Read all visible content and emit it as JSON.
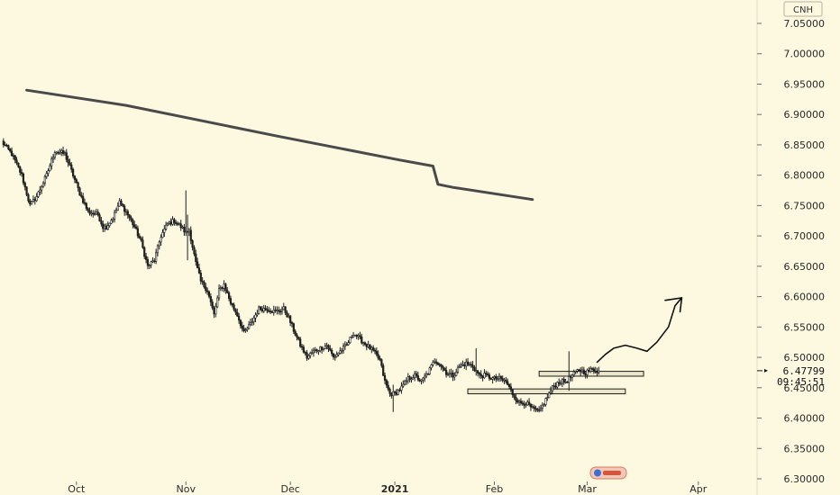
{
  "chart_data": {
    "type": "candlestick",
    "currency": "CNH",
    "ylim": [
      6.28,
      7.1
    ],
    "y_ticks": [
      "7.05000",
      "7.00000",
      "6.95000",
      "6.90000",
      "6.85000",
      "6.80000",
      "6.75000",
      "6.70000",
      "6.65000",
      "6.60000",
      "6.55000",
      "6.50000",
      "6.45000",
      "6.40000",
      "6.35000",
      "6.30000"
    ],
    "x_ticks": [
      {
        "label": "Oct",
        "index": 45
      },
      {
        "label": "Nov",
        "index": 111
      },
      {
        "label": "Dec",
        "index": 174
      },
      {
        "label": "2021",
        "index": 237,
        "bold": true
      },
      {
        "label": "Feb",
        "index": 297
      },
      {
        "label": "Mar",
        "index": 353
      },
      {
        "label": "Apr",
        "index": 420
      }
    ],
    "current_price": "6.47799",
    "current_time": "09:45:51",
    "close_anchors": [
      [
        0,
        6.855
      ],
      [
        6,
        6.835
      ],
      [
        12,
        6.8
      ],
      [
        17,
        6.75
      ],
      [
        21,
        6.765
      ],
      [
        27,
        6.8
      ],
      [
        32,
        6.84
      ],
      [
        38,
        6.835
      ],
      [
        43,
        6.8
      ],
      [
        47,
        6.77
      ],
      [
        52,
        6.74
      ],
      [
        58,
        6.735
      ],
      [
        61,
        6.715
      ],
      [
        63,
        6.715
      ],
      [
        67,
        6.73
      ],
      [
        71,
        6.755
      ],
      [
        75,
        6.74
      ],
      [
        80,
        6.715
      ],
      [
        84,
        6.69
      ],
      [
        88,
        6.65
      ],
      [
        92,
        6.66
      ],
      [
        96,
        6.7
      ],
      [
        100,
        6.72
      ],
      [
        104,
        6.725
      ],
      [
        108,
        6.715
      ],
      [
        111,
        6.705
      ],
      [
        113,
        6.71
      ],
      [
        117,
        6.655
      ],
      [
        120,
        6.625
      ],
      [
        124,
        6.61
      ],
      [
        128,
        6.57
      ],
      [
        131,
        6.61
      ],
      [
        134,
        6.62
      ],
      [
        138,
        6.59
      ],
      [
        142,
        6.57
      ],
      [
        146,
        6.54
      ],
      [
        150,
        6.555
      ],
      [
        155,
        6.58
      ],
      [
        160,
        6.58
      ],
      [
        165,
        6.575
      ],
      [
        170,
        6.58
      ],
      [
        173,
        6.565
      ],
      [
        176,
        6.545
      ],
      [
        180,
        6.52
      ],
      [
        184,
        6.5
      ],
      [
        188,
        6.51
      ],
      [
        192,
        6.515
      ],
      [
        196,
        6.52
      ],
      [
        200,
        6.5
      ],
      [
        204,
        6.51
      ],
      [
        208,
        6.52
      ],
      [
        212,
        6.54
      ],
      [
        216,
        6.53
      ],
      [
        220,
        6.52
      ],
      [
        224,
        6.51
      ],
      [
        228,
        6.495
      ],
      [
        231,
        6.46
      ],
      [
        234,
        6.44
      ],
      [
        237,
        6.44
      ],
      [
        241,
        6.45
      ],
      [
        245,
        6.465
      ],
      [
        249,
        6.47
      ],
      [
        253,
        6.46
      ],
      [
        257,
        6.475
      ],
      [
        261,
        6.495
      ],
      [
        264,
        6.49
      ],
      [
        268,
        6.475
      ],
      [
        272,
        6.47
      ],
      [
        276,
        6.485
      ],
      [
        280,
        6.49
      ],
      [
        284,
        6.485
      ],
      [
        288,
        6.47
      ],
      [
        292,
        6.47
      ],
      [
        296,
        6.465
      ],
      [
        300,
        6.465
      ],
      [
        304,
        6.46
      ],
      [
        308,
        6.44
      ],
      [
        312,
        6.425
      ],
      [
        316,
        6.425
      ],
      [
        320,
        6.415
      ],
      [
        324,
        6.41
      ],
      [
        328,
        6.43
      ],
      [
        332,
        6.45
      ],
      [
        336,
        6.46
      ],
      [
        340,
        6.46
      ],
      [
        344,
        6.47
      ],
      [
        348,
        6.48
      ],
      [
        352,
        6.475
      ],
      [
        356,
        6.48
      ],
      [
        360,
        6.478
      ]
    ],
    "spikes": [
      {
        "index": 111,
        "high": 6.775,
        "low": 6.7
      },
      {
        "index": 112,
        "high": 6.735,
        "low": 6.66
      },
      {
        "index": 236,
        "high": 6.455,
        "low": 6.41
      },
      {
        "index": 286,
        "high": 6.515,
        "low": 6.47
      },
      {
        "index": 342,
        "high": 6.51,
        "low": 6.445
      }
    ],
    "forecast_line": [
      [
        15,
        6.94
      ],
      [
        75,
        6.915
      ],
      [
        165,
        6.865
      ],
      [
        240,
        6.825
      ],
      [
        260,
        6.815
      ],
      [
        263,
        6.785
      ],
      [
        272,
        6.78
      ],
      [
        320,
        6.76
      ]
    ],
    "support_zones": [
      {
        "x0": 324,
        "x1": 387,
        "y_top": 6.477,
        "y_bottom": 6.469
      },
      {
        "x0": 281,
        "x1": 376,
        "y_top": 6.448,
        "y_bottom": 6.44
      }
    ],
    "arrow_path": [
      [
        359,
        6.492
      ],
      [
        364,
        6.505
      ],
      [
        369,
        6.515
      ],
      [
        376,
        6.52
      ],
      [
        383,
        6.515
      ],
      [
        389,
        6.51
      ],
      [
        395,
        6.525
      ],
      [
        402,
        6.55
      ],
      [
        406,
        6.585
      ],
      [
        410,
        6.598
      ]
    ],
    "arrow_head_left": [
      400,
      6.594
    ],
    "arrow_head_right": [
      409,
      6.575
    ]
  },
  "icons": {
    "logo": "tradingview-logo"
  }
}
